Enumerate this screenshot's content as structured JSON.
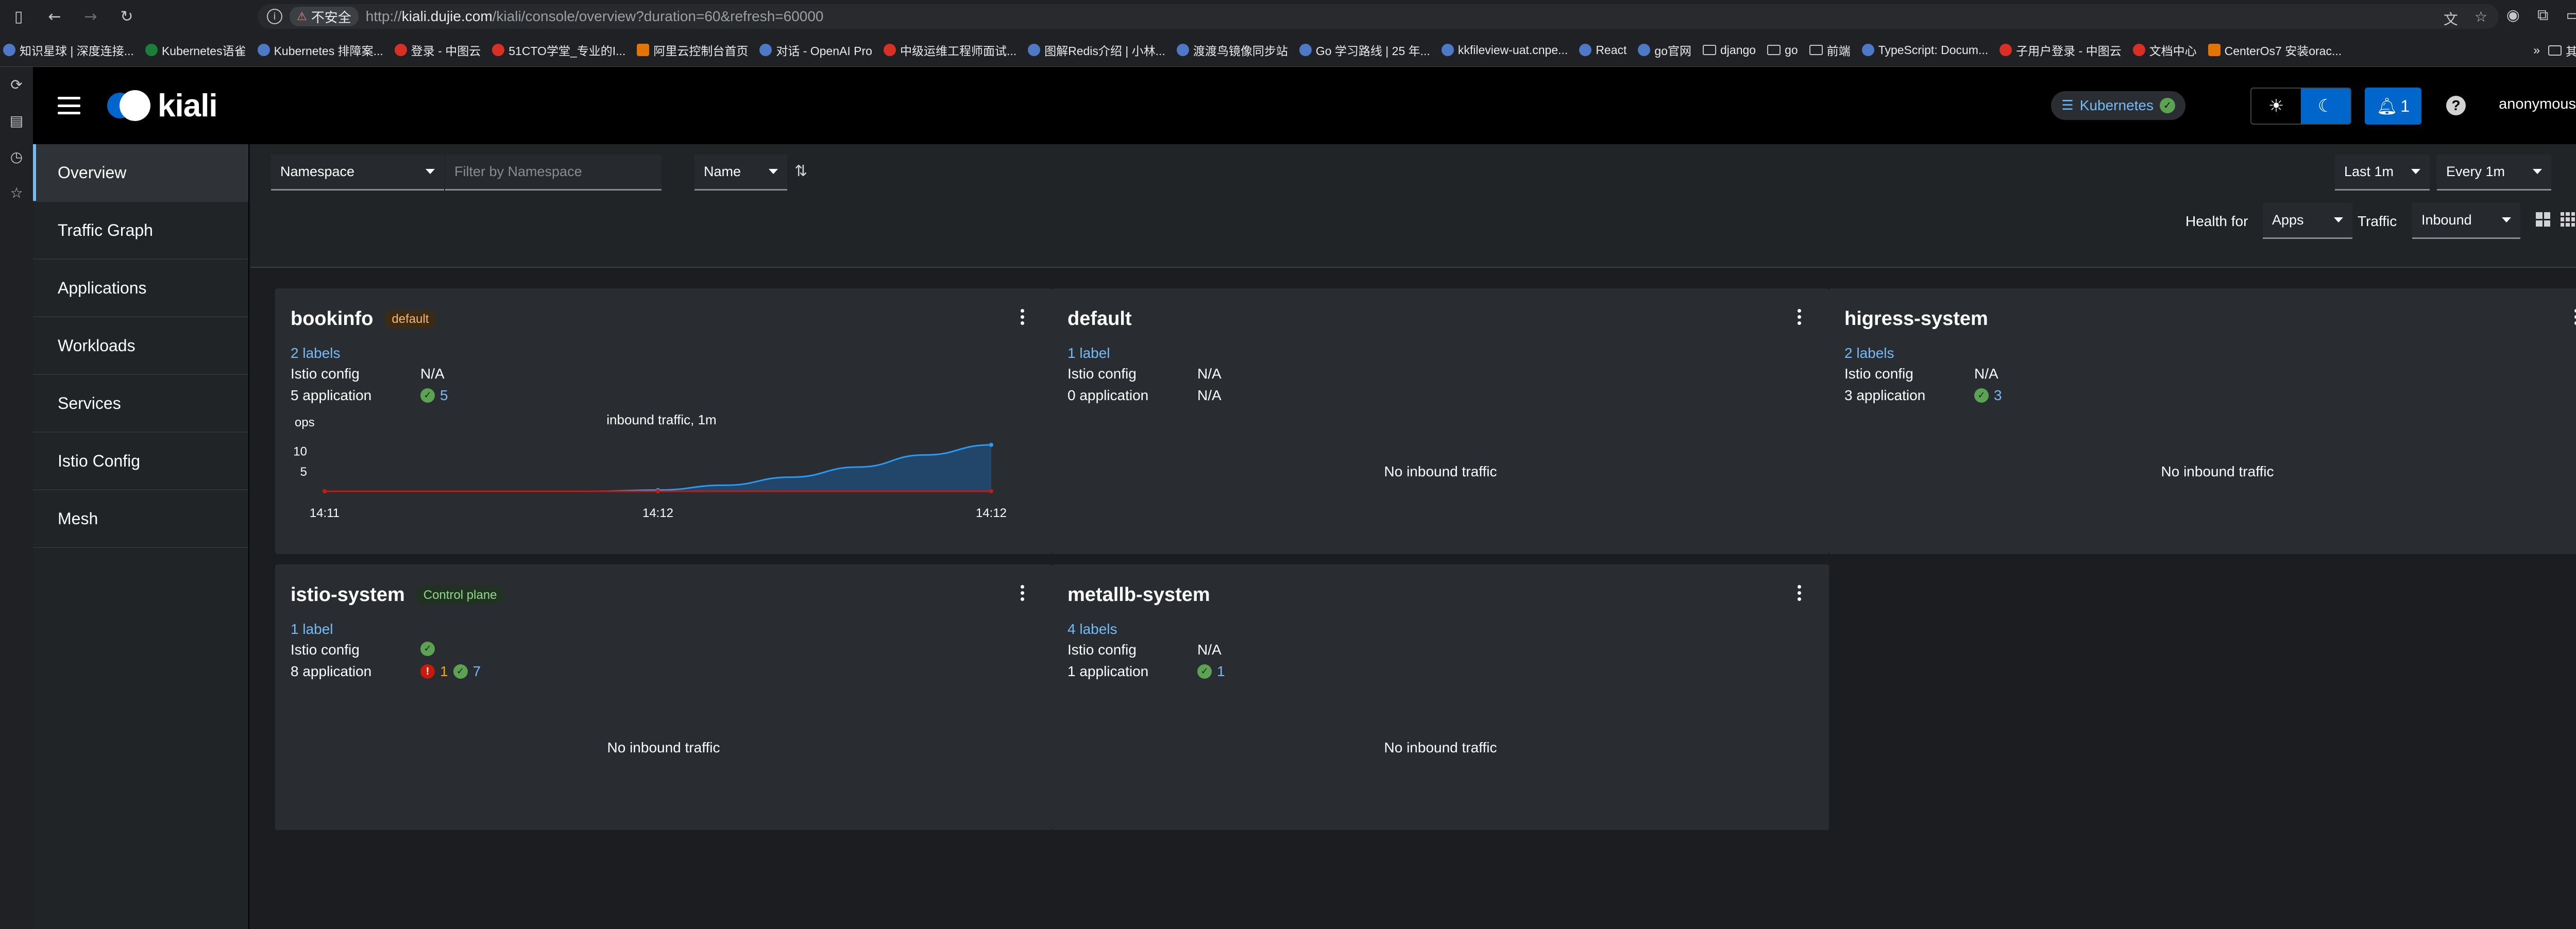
{
  "browser": {
    "insecure_label": "不安全",
    "url_host": "kiali.dujie.com",
    "url_scheme": "http://",
    "url_path": "/kiali/console/overview?duration=60&refresh=60000",
    "bookmarks": [
      "知识星球 | 深度连接...",
      "Kubernetes语雀",
      "Kubernetes 排障案...",
      "登录 - 中图云",
      "51CTO学堂_专业的I...",
      "阿里云控制台首页",
      "对话 - OpenAI Pro",
      "中级运维工程师面试...",
      "图解Redis介绍 | 小林...",
      "渡渡鸟镜像同步站",
      "Go 学习路线 | 25 年...",
      "kkfileview-uat.cnpe...",
      "React",
      "go官网",
      "django",
      "go",
      "前端",
      "TypeScript: Docum...",
      "子用户登录 - 中图云",
      "文档中心",
      "CenterOs7 安装orac..."
    ],
    "bookmarks_more": "其他书签"
  },
  "masthead": {
    "logo_text": "kiali",
    "cluster": "Kubernetes",
    "notifications_count": "1",
    "user": "anonymous"
  },
  "sidebar": {
    "items": [
      {
        "label": "Overview",
        "active": true
      },
      {
        "label": "Traffic Graph",
        "active": false
      },
      {
        "label": "Applications",
        "active": false
      },
      {
        "label": "Workloads",
        "active": false
      },
      {
        "label": "Services",
        "active": false
      },
      {
        "label": "Istio Config",
        "active": false
      },
      {
        "label": "Mesh",
        "active": false
      }
    ]
  },
  "toolbar": {
    "filter_type": "Namespace",
    "filter_placeholder": "Filter by Namespace",
    "sort_field": "Name",
    "duration": "Last 1m",
    "refresh_interval": "Every 1m",
    "health_for_label": "Health for",
    "health_for_value": "Apps",
    "traffic_label": "Traffic",
    "traffic_value": "Inbound"
  },
  "cards": [
    {
      "name": "bookinfo",
      "badge": "default",
      "labels": "2 labels",
      "istio_config_label": "Istio config",
      "istio_config": "N/A",
      "apps_label": "5 application",
      "apps_ok": "5",
      "chart": true
    },
    {
      "name": "default",
      "labels": "1 label",
      "istio_config_label": "Istio config",
      "istio_config": "N/A",
      "apps_label": "0 application",
      "apps_value": "N/A",
      "no_traffic": "No inbound traffic"
    },
    {
      "name": "higress-system",
      "labels": "2 labels",
      "istio_config_label": "Istio config",
      "istio_config": "N/A",
      "apps_label": "3 application",
      "apps_ok": "3",
      "no_traffic": "No inbound traffic"
    },
    {
      "name": "istio-system",
      "badge": "Control plane",
      "labels": "1 label",
      "istio_config_label": "Istio config",
      "istio_config_ok": true,
      "apps_label": "8 application",
      "apps_err": "1",
      "apps_ok": "7",
      "no_traffic": "No inbound traffic"
    },
    {
      "name": "metallb-system",
      "labels": "4 labels",
      "istio_config_label": "Istio config",
      "istio_config": "N/A",
      "apps_label": "1 application",
      "apps_ok": "1",
      "no_traffic": "No inbound traffic"
    }
  ],
  "chart_data": {
    "type": "area",
    "title": "inbound traffic, 1m",
    "ylabel": "ops",
    "x_ticks": [
      "14:11",
      "14:12",
      "14:12"
    ],
    "y_ticks": [
      5,
      10
    ],
    "ylim": [
      0,
      12
    ],
    "series": [
      {
        "color": "#2b9af3",
        "values": [
          0,
          0,
          0,
          0,
          0,
          0.3,
          1.5,
          3.5,
          6,
          9,
          11.5
        ]
      },
      {
        "color": "#c9190b",
        "values": [
          0,
          0,
          0,
          0,
          0,
          0,
          0,
          0,
          0,
          0,
          0
        ]
      }
    ]
  }
}
